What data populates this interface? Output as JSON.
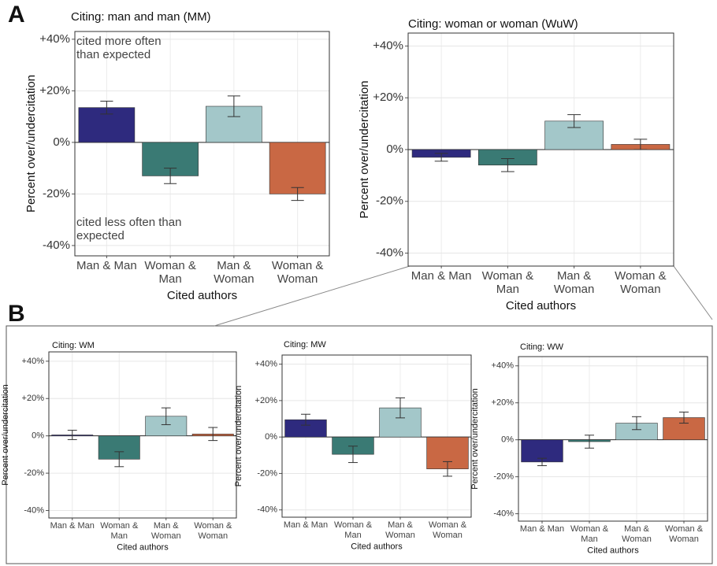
{
  "panel_labels": [
    "A",
    "B"
  ],
  "chart_data": [
    {
      "type": "bar",
      "title": "Citing: man and man (MM)",
      "ylabel": "Percent over/undercitation",
      "xlabel": "Cited authors",
      "categories": [
        "Man & Man",
        "Woman & Man",
        "Man & Woman",
        "Woman & Woman"
      ],
      "values": [
        13.5,
        -13,
        14,
        -20
      ],
      "errors": [
        2.5,
        3,
        4,
        2.5
      ],
      "colors": [
        "#2e2a7e",
        "#3a7a74",
        "#a3c7c9",
        "#c96844"
      ],
      "annotations": [
        "cited more often than expected",
        "cited less often than expected"
      ],
      "ylim": [
        -44,
        43
      ],
      "yticks": [
        {
          "value": 40,
          "label": "+40%"
        },
        {
          "value": 20,
          "label": "+20%"
        },
        {
          "value": 0,
          "label": "0%"
        },
        {
          "value": -20,
          "label": "-20%"
        },
        {
          "value": -40,
          "label": "-40%"
        }
      ],
      "grid": true
    },
    {
      "type": "bar",
      "title": "Citing: woman or woman (WuW)",
      "ylabel": "Percent over/undercitation",
      "xlabel": "Cited authors",
      "categories": [
        "Man & Man",
        "Woman & Man",
        "Man & Woman",
        "Woman & Woman"
      ],
      "values": [
        -3,
        -6,
        11,
        2
      ],
      "errors": [
        1.5,
        2.5,
        2.5,
        2
      ],
      "colors": [
        "#2e2a7e",
        "#3a7a74",
        "#a3c7c9",
        "#c96844"
      ],
      "ylim": [
        -45,
        45
      ],
      "yticks": [
        {
          "value": 40,
          "label": "+40%"
        },
        {
          "value": 20,
          "label": "+20%"
        },
        {
          "value": 0,
          "label": "0%"
        },
        {
          "value": -20,
          "label": "-20%"
        },
        {
          "value": -40,
          "label": "-40%"
        }
      ],
      "grid": true
    },
    {
      "type": "bar",
      "title": "Citing: WM",
      "ylabel": "Percent over/undercitation",
      "xlabel": "Cited authors",
      "categories": [
        "Man & Man",
        "Woman & Man",
        "Man & Woman",
        "Woman & Woman"
      ],
      "values": [
        0.5,
        -12.5,
        10.5,
        1
      ],
      "errors": [
        2.5,
        4,
        4.5,
        3.5
      ],
      "colors": [
        "#2e2a7e",
        "#3a7a74",
        "#a3c7c9",
        "#c96844"
      ],
      "ylim": [
        -44,
        45
      ],
      "yticks": [
        {
          "value": 40,
          "label": "+40%"
        },
        {
          "value": 20,
          "label": "+20%"
        },
        {
          "value": 0,
          "label": "0%"
        },
        {
          "value": -20,
          "label": "-20%"
        },
        {
          "value": -40,
          "label": "-40%"
        }
      ],
      "grid": true
    },
    {
      "type": "bar",
      "title": "Citing: MW",
      "ylabel": "Percent over/undercitation",
      "xlabel": "Cited authors",
      "categories": [
        "Man & Man",
        "Woman & Man",
        "Man & Woman",
        "Woman & Woman"
      ],
      "values": [
        9.5,
        -9.5,
        16,
        -17.5
      ],
      "errors": [
        3,
        4.5,
        5.5,
        4
      ],
      "colors": [
        "#2e2a7e",
        "#3a7a74",
        "#a3c7c9",
        "#c96844"
      ],
      "ylim": [
        -44,
        45
      ],
      "yticks": [
        {
          "value": 40,
          "label": "+40%"
        },
        {
          "value": 20,
          "label": "+20%"
        },
        {
          "value": 0,
          "label": "0%"
        },
        {
          "value": -20,
          "label": "-20%"
        },
        {
          "value": -40,
          "label": "-40%"
        }
      ],
      "grid": true
    },
    {
      "type": "bar",
      "title": "Citing: WW",
      "ylabel": "Percent over/undercitation",
      "xlabel": "Cited authors",
      "categories": [
        "Man & Man",
        "Woman & Man",
        "Man & Woman",
        "Woman & Woman"
      ],
      "values": [
        -12,
        -1,
        9,
        12
      ],
      "errors": [
        2,
        3.5,
        3.5,
        3
      ],
      "colors": [
        "#2e2a7e",
        "#3a7a74",
        "#a3c7c9",
        "#c96844"
      ],
      "ylim": [
        -44,
        45
      ],
      "yticks": [
        {
          "value": 40,
          "label": "+40%"
        },
        {
          "value": 20,
          "label": "+20%"
        },
        {
          "value": 0,
          "label": "0%"
        },
        {
          "value": -20,
          "label": "-20%"
        },
        {
          "value": -40,
          "label": "-40%"
        }
      ],
      "grid": true
    }
  ]
}
